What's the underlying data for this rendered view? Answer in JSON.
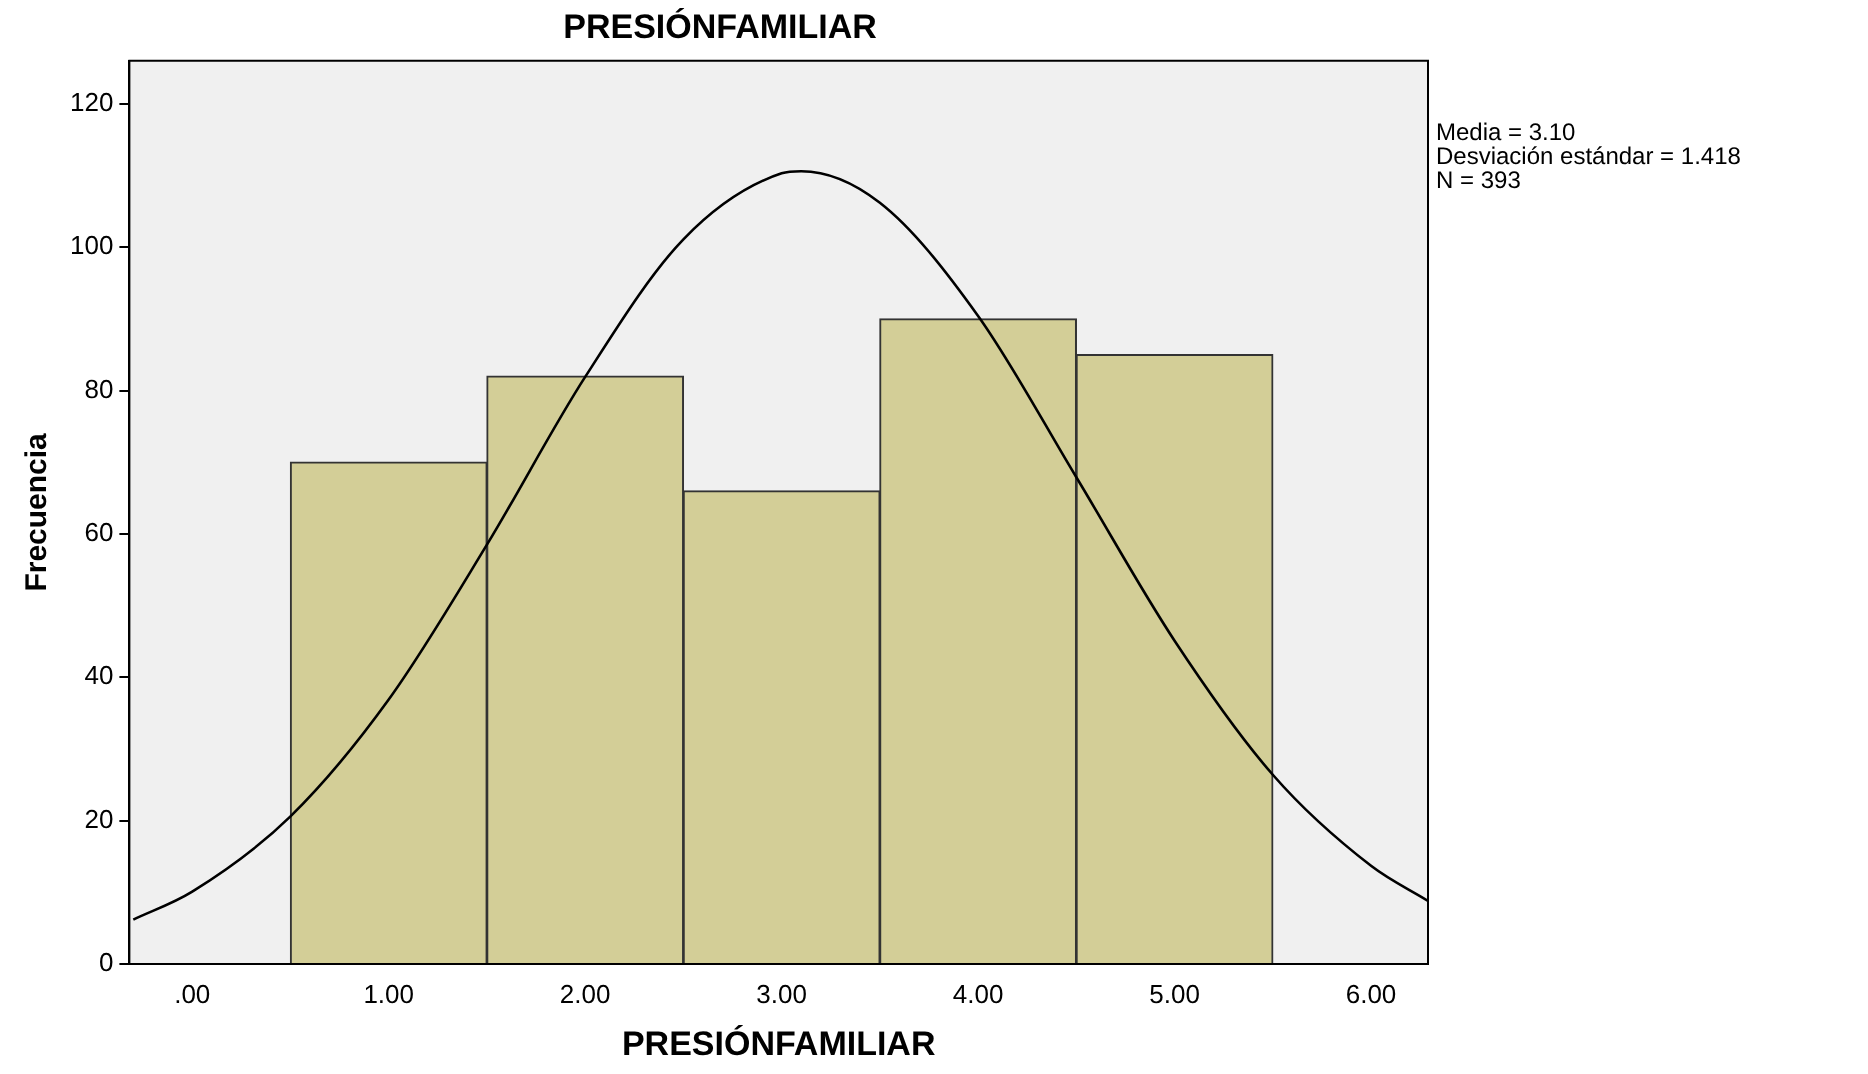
{
  "chart_data": {
    "type": "histogram",
    "title": "PRESIÓNFAMILIAR",
    "xlabel": "PRESIÓNFAMILIAR",
    "ylabel": "Frecuencia",
    "bins": [
      0.5,
      1.5,
      2.5,
      3.5,
      4.5,
      5.5
    ],
    "values": [
      70,
      82,
      66,
      90,
      85
    ],
    "color": "#d3ce97",
    "series": [
      {
        "type": "line",
        "color": "#000000",
        "x": [
          -0.3,
          0,
          0.5,
          1,
          1.5,
          2,
          2.5,
          3,
          3.1,
          3.5,
          4,
          4.5,
          5,
          5.5,
          6,
          6.29
        ],
        "values": [
          6.2,
          10.1,
          20.6,
          36.9,
          58.5,
          81.9,
          101.1,
          110.3,
          110.6,
          106.2,
          90.4,
          67.9,
          45.1,
          26.4,
          13.7,
          8.8
        ]
      }
    ],
    "xlim": [
      -0.32,
      6.29
    ],
    "xticks": [
      {
        "value": 0,
        "label": ".00"
      },
      {
        "value": 1,
        "label": "1.00"
      },
      {
        "value": 2,
        "label": "2.00"
      },
      {
        "value": 3,
        "label": "3.00"
      },
      {
        "value": 4,
        "label": "4.00"
      },
      {
        "value": 5,
        "label": "5.00"
      },
      {
        "value": 6,
        "label": "6.00"
      }
    ],
    "ylim": [
      0,
      126
    ],
    "yticks": [
      0,
      20,
      40,
      60,
      80,
      100,
      120
    ],
    "annotations": [
      "Media = 3.10",
      "Desviación estándar = 1.418",
      "N = 393"
    ],
    "grid": false,
    "legend": false,
    "marker": "none"
  }
}
